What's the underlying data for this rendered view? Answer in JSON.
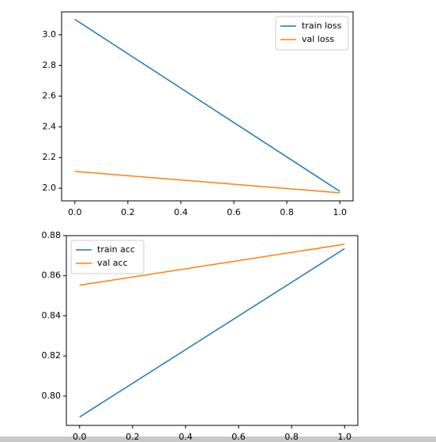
{
  "chart_data": [
    {
      "type": "line",
      "x": [
        {
          "value": 0,
          "label": "0.0"
        },
        {
          "value": 1,
          "label": "1.0"
        }
      ],
      "series": [
        {
          "name": "train loss",
          "color": "#1f77b4",
          "values": [
            3.1,
            1.98
          ]
        },
        {
          "name": "val loss",
          "color": "#ff7f0e",
          "values": [
            2.11,
            1.97
          ]
        }
      ],
      "xlim": [
        -0.05,
        1.05
      ],
      "xticks": [
        {
          "value": 0,
          "label": "0.0"
        },
        0.2,
        0.4,
        0.6,
        0.8,
        {
          "value": 1,
          "label": "1.0"
        }
      ],
      "ylim": [
        1.918,
        3.149
      ],
      "yticks": [
        {
          "value": 2,
          "label": "2.0"
        },
        2.2,
        2.4,
        2.6,
        2.8,
        {
          "value": 3,
          "label": "3.0"
        }
      ],
      "legend": "upper-right"
    },
    {
      "type": "line",
      "x": [
        {
          "value": 0,
          "label": "0.0"
        },
        {
          "value": 1,
          "label": "1.0"
        }
      ],
      "series": [
        {
          "name": "train acc",
          "color": "#1f77b4",
          "values": [
            0.7896,
            0.8735
          ]
        },
        {
          "name": "val acc",
          "color": "#ff7f0e",
          "values": [
            0.8553,
            0.8757
          ]
        }
      ],
      "xlim": [
        -0.05,
        1.05
      ],
      "xticks": [
        {
          "value": 0,
          "label": "0.0"
        },
        0.2,
        0.4,
        0.6,
        0.8,
        {
          "value": 1,
          "label": "1.0"
        }
      ],
      "ylim": [
        0.7854,
        0.88
      ],
      "yticks": [
        {
          "value": 0.8,
          "label": "0.80"
        },
        0.82,
        0.84,
        0.86,
        0.88
      ],
      "legend": "upper-left"
    }
  ]
}
